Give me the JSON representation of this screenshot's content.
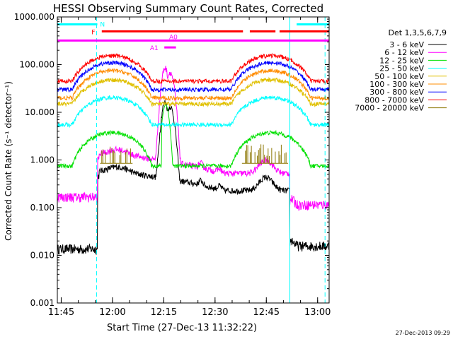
{
  "chart_data": {
    "type": "line",
    "title": "HESSI Observing Summary Count Rates, Corrected",
    "xlabel": "Start Time (27-Dec-13 11:32:22)",
    "ylabel": "Corrected Count Rate (s⁻¹ detector⁻¹)",
    "y_scale": "log",
    "ylim": [
      0.001,
      1000
    ],
    "xlim_minutes": [
      11.5,
      91.0
    ],
    "x_ticks": [
      "11:45",
      "12:00",
      "12:15",
      "12:30",
      "12:45",
      "13:00"
    ],
    "x_tick_minutes": [
      12.63,
      27.63,
      42.63,
      57.63,
      72.63,
      87.63
    ],
    "y_ticks": [
      "0.001",
      "0.010",
      "0.100",
      "1.000",
      "10.000",
      "100.000",
      "1000.000"
    ],
    "legend_title": "Det 1,3,5,6,7,9",
    "legend_position": "right",
    "series": [
      {
        "name": "3 - 6 keV",
        "color": "#000000",
        "kind": "flare_low",
        "pre": 0.013,
        "bg": 0.65,
        "peak": 16,
        "post": 0.015
      },
      {
        "name": "6 - 12 keV",
        "color": "#ff00ff",
        "kind": "flare_mid",
        "pre": 0.16,
        "bg": 1.5,
        "peak": 85,
        "post": 0.11
      },
      {
        "name": "12 - 25 keV",
        "color": "#00e000",
        "kind": "background",
        "base": 0.75,
        "amp": 3.0
      },
      {
        "name": "25 - 50 keV",
        "color": "#00ffff",
        "kind": "background",
        "base": 5.5,
        "amp": 15
      },
      {
        "name": "50 - 100 keV",
        "color": "#e0c000",
        "kind": "background",
        "base": 15,
        "amp": 33
      },
      {
        "name": "100 - 300 keV",
        "color": "#ff8c00",
        "kind": "background",
        "base": 20,
        "amp": 55
      },
      {
        "name": "300 - 800 keV",
        "color": "#0000ff",
        "kind": "background",
        "base": 30,
        "amp": 80
      },
      {
        "name": "800 - 7000 keV",
        "color": "#ff0000",
        "kind": "background",
        "base": 45,
        "amp": 110
      },
      {
        "name": "7000 - 20000 keV",
        "color": "#8b7500",
        "kind": "bursts"
      }
    ],
    "flags": [
      {
        "label": "N",
        "color": "#00ffff",
        "y": 700,
        "segments": [
          [
            11.5,
            23.2
          ],
          [
            81.5,
            91.0
          ]
        ]
      },
      {
        "label": "F",
        "color": "#ff0000",
        "y": 500,
        "segments": [
          [
            24.5,
            65.8
          ],
          [
            67.8,
            75.3
          ],
          [
            76.5,
            91.0
          ]
        ]
      },
      {
        "label": "",
        "color": "#ff00ff",
        "y": 320,
        "segments": [
          [
            11.5,
            91.0
          ]
        ]
      },
      {
        "label": "A1",
        "color": "#ff00ff",
        "y": 230,
        "segments": [
          [
            42.8,
            46.2
          ]
        ]
      },
      {
        "label": "A0",
        "color": "#ff00ff",
        "y": 320,
        "segments": []
      }
    ],
    "vertical_lines": [
      {
        "minute": 23.0,
        "color": "#00ffff",
        "style": "dashed"
      },
      {
        "minute": 79.5,
        "color": "#00ffff",
        "style": "solid"
      },
      {
        "minute": 89.8,
        "color": "#00ffff",
        "style": "dashed"
      }
    ]
  },
  "timestamp": "27-Dec-2013 09:29"
}
